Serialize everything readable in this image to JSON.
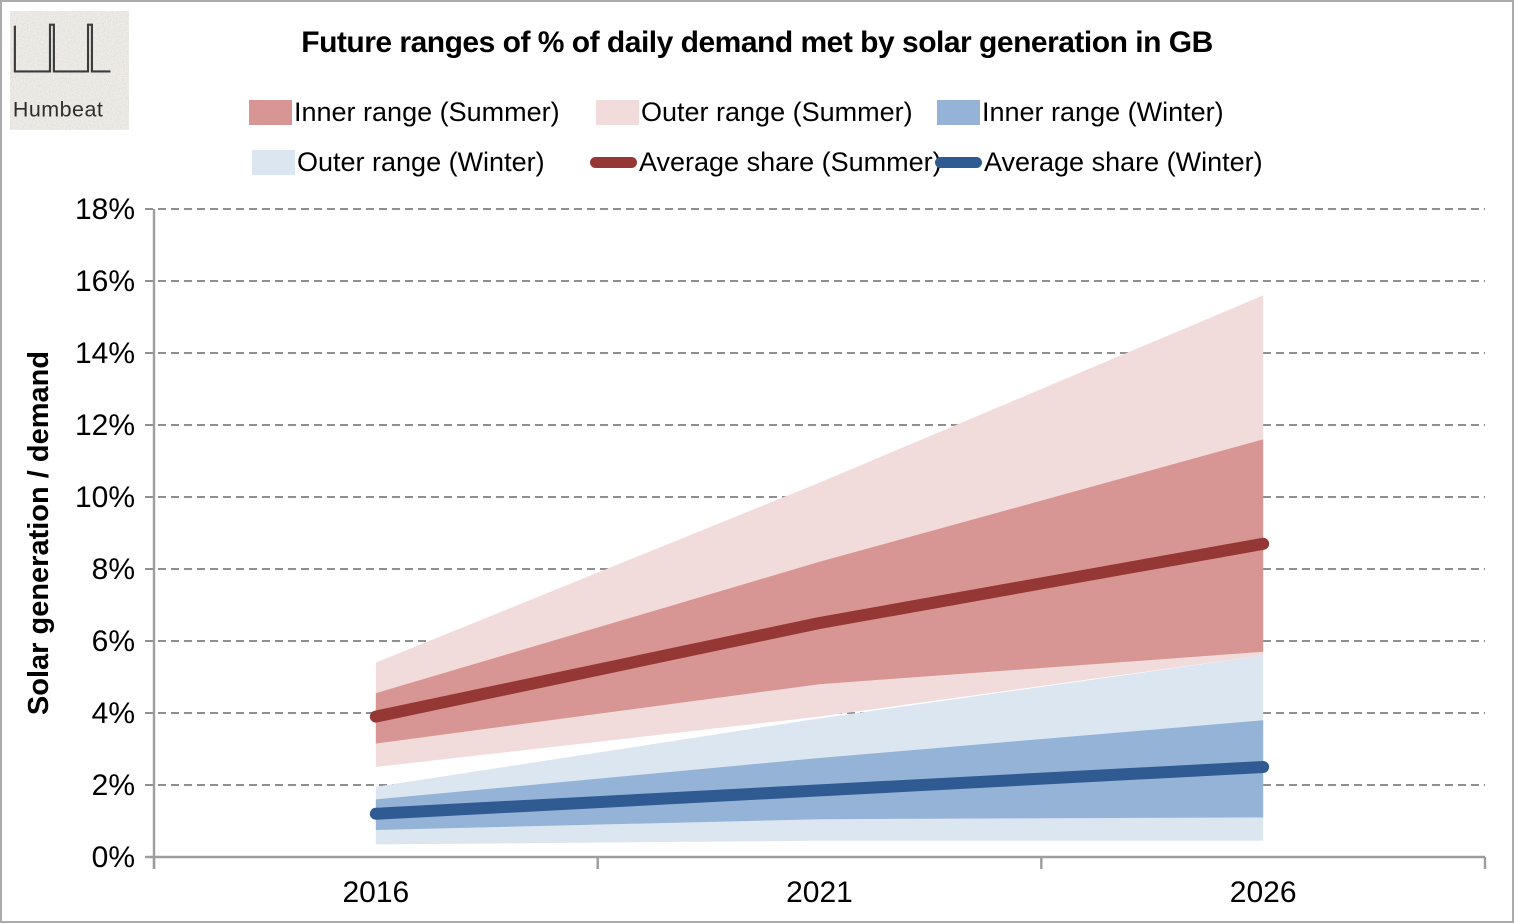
{
  "logo": {
    "text": "Humbeat"
  },
  "title": "Future ranges of % of daily demand met by solar generation in GB",
  "legend": {
    "items": [
      {
        "label": "Inner range (Summer)",
        "type": "fill",
        "color": "#d79593"
      },
      {
        "label": "Outer range (Summer)",
        "type": "fill",
        "color": "#f2dcdb"
      },
      {
        "label": "Inner range (Winter)",
        "type": "fill",
        "color": "#95b3d7"
      },
      {
        "label": "Outer range (Winter)",
        "type": "fill",
        "color": "#dce6f1"
      },
      {
        "label": "Average share (Summer)",
        "type": "line",
        "color": "#953735"
      },
      {
        "label": "Average share (Winter)",
        "type": "line",
        "color": "#2f5b92"
      }
    ]
  },
  "chart_data": {
    "type": "area",
    "title": "Future ranges of % of daily demand met by solar generation in GB",
    "xlabel": "",
    "ylabel": "Solar generation / demand",
    "x": [
      2016,
      2021,
      2026
    ],
    "x_tick_labels": [
      "2016",
      "2021",
      "2026"
    ],
    "y_tick_labels": [
      "0%",
      "2%",
      "4%",
      "6%",
      "8%",
      "10%",
      "12%",
      "14%",
      "16%",
      "18%"
    ],
    "ylim": [
      0,
      18
    ],
    "y_step": 2,
    "grid": "horizontal-dashed",
    "legend_position": "top",
    "series": [
      {
        "name": "Outer range (Summer)",
        "kind": "band",
        "color": "#f2dcdb",
        "upper": [
          5.4,
          10.4,
          15.6
        ],
        "lower": [
          2.5,
          3.9,
          5.6
        ]
      },
      {
        "name": "Inner range (Summer)",
        "kind": "band",
        "color": "#d79593",
        "upper": [
          4.55,
          8.2,
          11.6
        ],
        "lower": [
          3.15,
          4.8,
          5.7
        ]
      },
      {
        "name": "Average share (Summer)",
        "kind": "line",
        "color": "#953735",
        "values": [
          3.9,
          6.5,
          8.7
        ]
      },
      {
        "name": "Outer range (Winter)",
        "kind": "band",
        "color": "#dce6f1",
        "upper": [
          1.95,
          3.85,
          5.6
        ],
        "lower": [
          0.35,
          0.45,
          0.45
        ]
      },
      {
        "name": "Inner range (Winter)",
        "kind": "band",
        "color": "#95b3d7",
        "upper": [
          1.6,
          2.75,
          3.8
        ],
        "lower": [
          0.75,
          1.05,
          1.1
        ]
      },
      {
        "name": "Average share (Winter)",
        "kind": "line",
        "color": "#2f5b92",
        "values": [
          1.2,
          1.85,
          2.5
        ]
      }
    ],
    "axis_color": "#9d9d9d",
    "grid_color": "#8f8f8f"
  }
}
